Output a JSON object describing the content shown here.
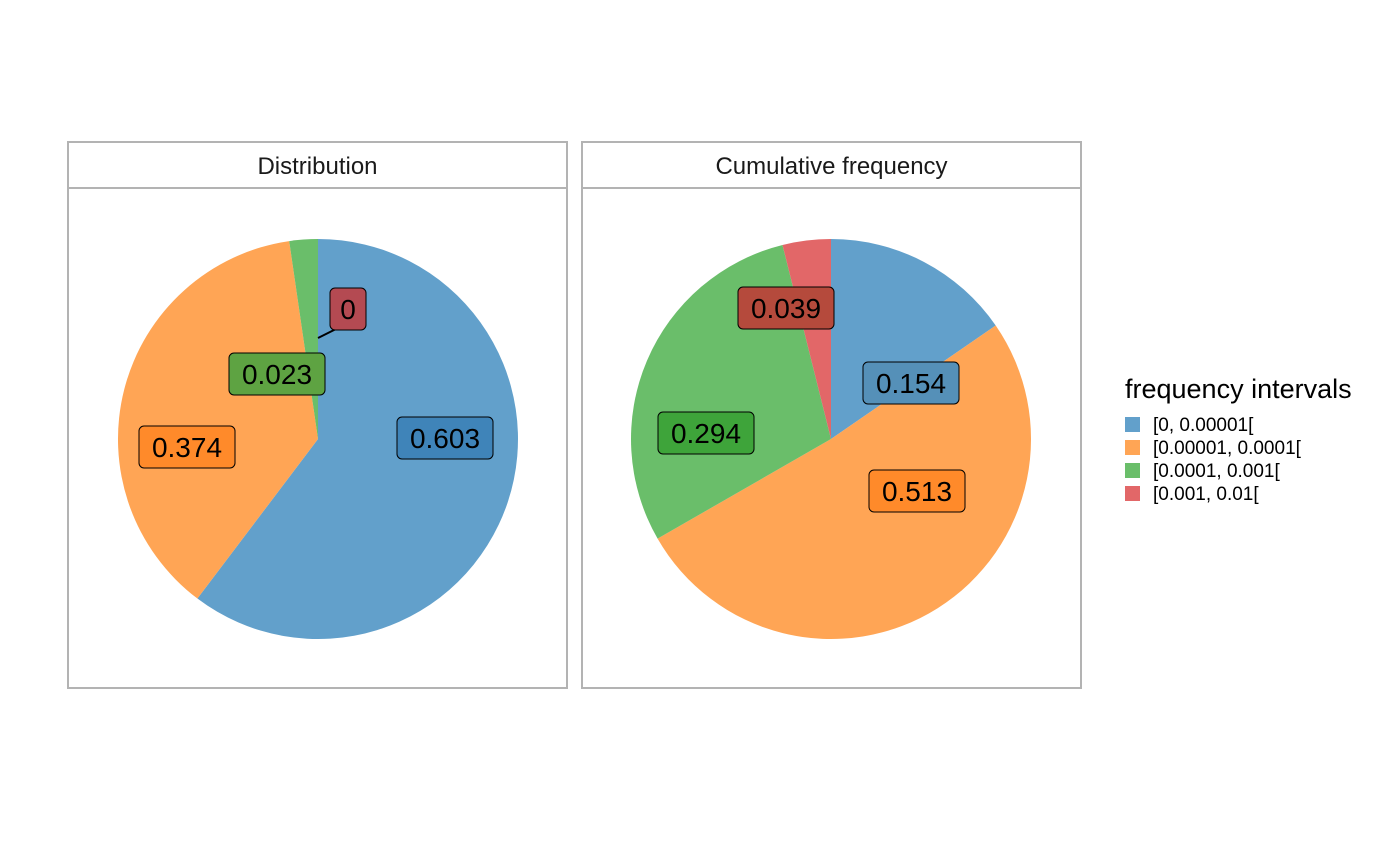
{
  "chart_data": {
    "type": "pie",
    "legend": {
      "title": "frequency intervals",
      "position": "right",
      "items": [
        {
          "label": "[0, 0.00001[",
          "color": "#62a0cb"
        },
        {
          "label": "[0.00001, 0.0001[",
          "color": "#ffa555"
        },
        {
          "label": "[0.0001, 0.001[",
          "color": "#6abe6a"
        },
        {
          "label": "[0.001, 0.01[",
          "color": "#e26768"
        }
      ]
    },
    "panels": [
      {
        "title": "Distribution",
        "slices": [
          {
            "category": "[0, 0.00001[",
            "value": 0.603,
            "label": "0.603",
            "label_fill": "#3f84b9"
          },
          {
            "category": "[0.00001, 0.0001[",
            "value": 0.374,
            "label": "0.374",
            "label_fill": "#ff8a2a"
          },
          {
            "category": "[0.0001, 0.001[",
            "value": 0.023,
            "label": "0.023",
            "label_fill": "#5ea342"
          },
          {
            "category": "[0.001, 0.01[",
            "value": 0,
            "label": "0",
            "label_fill": "#b44a52"
          }
        ]
      },
      {
        "title": "Cumulative frequency",
        "slices": [
          {
            "category": "[0, 0.00001[",
            "value": 0.154,
            "label": "0.154",
            "label_fill": "#5590b8"
          },
          {
            "category": "[0.00001, 0.0001[",
            "value": 0.513,
            "label": "0.513",
            "label_fill": "#ff8a2a"
          },
          {
            "category": "[0.0001, 0.001[",
            "value": 0.294,
            "label": "0.294",
            "label_fill": "#3ea43a"
          },
          {
            "category": "[0.001, 0.01[",
            "value": 0.039,
            "label": "0.039",
            "label_fill": "#b54a3c"
          }
        ]
      }
    ]
  }
}
